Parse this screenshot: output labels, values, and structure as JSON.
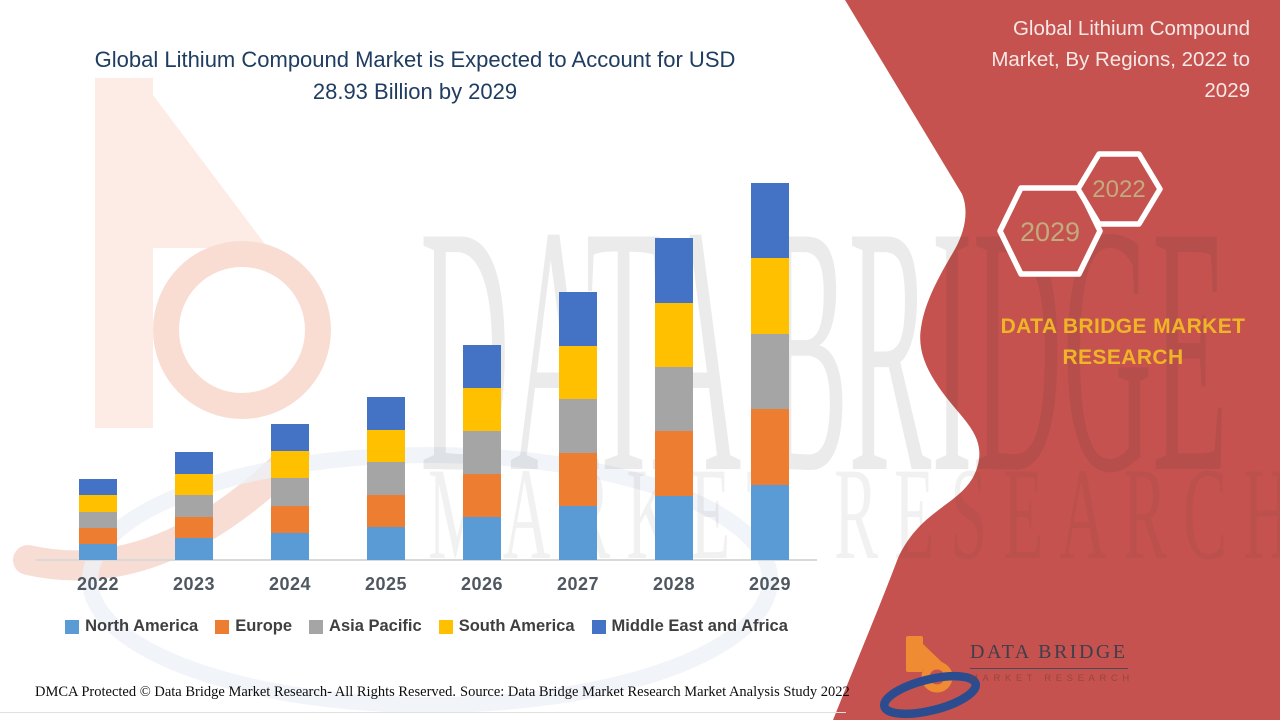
{
  "header": {
    "title": "Global Lithium Compound Market is Expected to Account for USD 28.93 Billion by 2029"
  },
  "panel": {
    "heading": "Global Lithium Compound Market, By Regions, 2022 to 2029",
    "hexagons": [
      {
        "label": "2029"
      },
      {
        "label": "2022"
      }
    ],
    "brand_text": "DATA BRIDGE MARKET RESEARCH",
    "logo_title": "DATA BRIDGE",
    "logo_subtitle": "MARKET RESEARCH",
    "colors": {
      "panel_red": "#c5524f",
      "heading_text": "#f6e8e6",
      "hex_label": "#c3ab7e",
      "brand_gold": "#efb527"
    }
  },
  "watermark": {
    "line1": "DATA BRIDGE",
    "line2": "MARKET RESEARCH"
  },
  "footer": {
    "dmca": "DMCA Protected © Data Bridge Market Research- All Rights Reserved.",
    "source": "Source: Data Bridge Market Research Market Analysis Study 2022"
  },
  "chart_data": {
    "type": "bar",
    "stacked": true,
    "title": "Global Lithium Compound Market is Expected to Account for USD 28.93 Billion by 2029",
    "unit": "USD Billion",
    "categories": [
      "2022",
      "2023",
      "2024",
      "2025",
      "2026",
      "2027",
      "2028",
      "2029"
    ],
    "series": [
      {
        "name": "North America",
        "color": "#5B9BD5",
        "values": [
          1.24,
          1.66,
          2.09,
          2.5,
          3.3,
          4.11,
          4.94,
          5.79
        ]
      },
      {
        "name": "Europe",
        "color": "#ED7D31",
        "values": [
          1.24,
          1.66,
          2.09,
          2.5,
          3.3,
          4.11,
          4.94,
          5.79
        ]
      },
      {
        "name": "Asia Pacific",
        "color": "#A5A5A5",
        "values": [
          1.24,
          1.66,
          2.09,
          2.5,
          3.3,
          4.11,
          4.94,
          5.79
        ]
      },
      {
        "name": "South America",
        "color": "#FFC000",
        "values": [
          1.24,
          1.66,
          2.09,
          2.5,
          3.3,
          4.11,
          4.94,
          5.79
        ]
      },
      {
        "name": "Middle East and Africa",
        "color": "#4472C4",
        "values": [
          1.24,
          1.66,
          2.09,
          2.5,
          3.3,
          4.11,
          4.94,
          5.79
        ]
      }
    ],
    "totals_estimated": [
      6.2,
      8.3,
      10.45,
      12.5,
      16.5,
      20.55,
      24.7,
      28.93
    ],
    "xlabel": "",
    "ylabel": "",
    "y_axis_visible": false,
    "gridlines": false,
    "legend_position": "bottom"
  }
}
